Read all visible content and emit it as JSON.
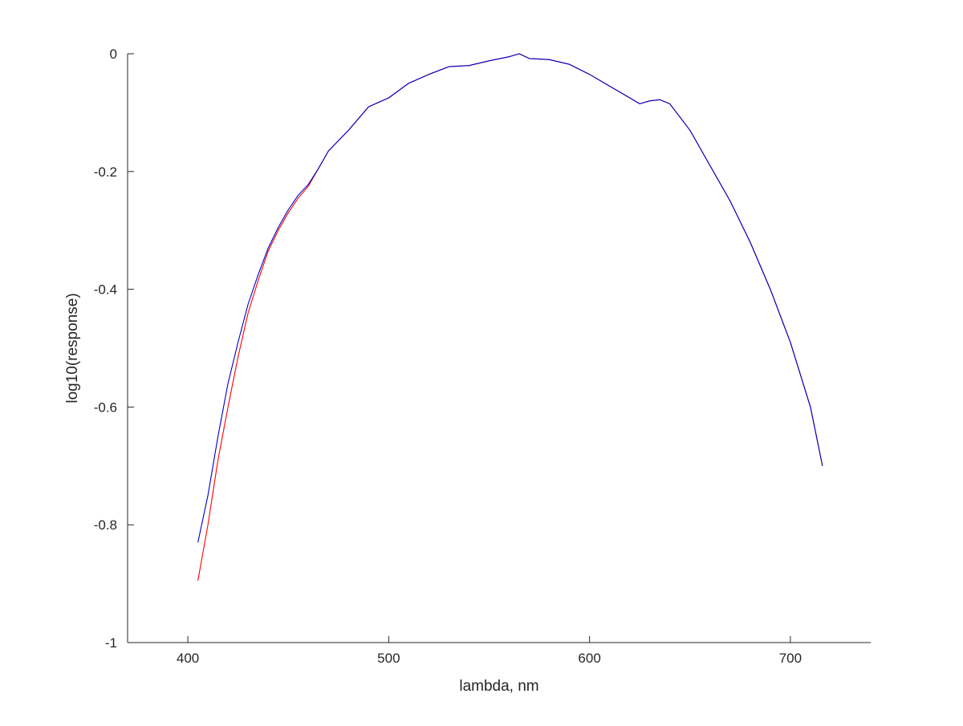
{
  "chart_data": {
    "type": "line",
    "title": "",
    "xlabel": "lambda, nm",
    "ylabel": "log10(response)",
    "xlim": [
      370,
      740
    ],
    "ylim": [
      -1,
      0
    ],
    "xticks": [
      400,
      500,
      600,
      700
    ],
    "yticks": [
      0,
      -0.2,
      -0.4,
      -0.6,
      -0.8,
      -1
    ],
    "xtick_labels": [
      "400",
      "500",
      "600",
      "700"
    ],
    "ytick_labels": [
      "0",
      "-0.2",
      "-0.4",
      "-0.6",
      "-0.8",
      "-1"
    ],
    "grid": false,
    "legend": "none",
    "series": [
      {
        "color": "#ff0000",
        "x": [
          405,
          410,
          415,
          420,
          425,
          430,
          435,
          440,
          445,
          450,
          455,
          460,
          465,
          470,
          480,
          490,
          500,
          510,
          520,
          530,
          540,
          550,
          560,
          565,
          570,
          580,
          590,
          600,
          610,
          620,
          625,
          630,
          635,
          640,
          650,
          660,
          670,
          680,
          690,
          700,
          710,
          716
        ],
        "y": [
          -0.895,
          -0.8,
          -0.69,
          -0.6,
          -0.515,
          -0.44,
          -0.385,
          -0.335,
          -0.3,
          -0.27,
          -0.245,
          -0.225,
          -0.195,
          -0.165,
          -0.13,
          -0.09,
          -0.075,
          -0.05,
          -0.035,
          -0.022,
          -0.02,
          -0.012,
          -0.005,
          0,
          -0.008,
          -0.01,
          -0.018,
          -0.035,
          -0.055,
          -0.075,
          -0.085,
          -0.08,
          -0.078,
          -0.085,
          -0.13,
          -0.19,
          -0.25,
          -0.32,
          -0.4,
          -0.49,
          -0.6,
          -0.7
        ]
      },
      {
        "color": "#0000cc",
        "x": [
          405,
          410,
          415,
          420,
          425,
          430,
          435,
          440,
          445,
          450,
          455,
          460,
          465,
          470,
          480,
          490,
          500,
          510,
          520,
          530,
          540,
          550,
          560,
          565,
          570,
          580,
          590,
          600,
          610,
          620,
          625,
          630,
          635,
          640,
          650,
          660,
          670,
          680,
          690,
          700,
          710,
          716
        ],
        "y": [
          -0.83,
          -0.75,
          -0.65,
          -0.56,
          -0.49,
          -0.425,
          -0.375,
          -0.33,
          -0.295,
          -0.265,
          -0.24,
          -0.222,
          -0.195,
          -0.165,
          -0.13,
          -0.09,
          -0.075,
          -0.05,
          -0.035,
          -0.022,
          -0.02,
          -0.012,
          -0.005,
          0,
          -0.008,
          -0.01,
          -0.018,
          -0.035,
          -0.055,
          -0.075,
          -0.085,
          -0.08,
          -0.078,
          -0.085,
          -0.13,
          -0.19,
          -0.25,
          -0.32,
          -0.4,
          -0.49,
          -0.6,
          -0.7
        ]
      }
    ]
  }
}
